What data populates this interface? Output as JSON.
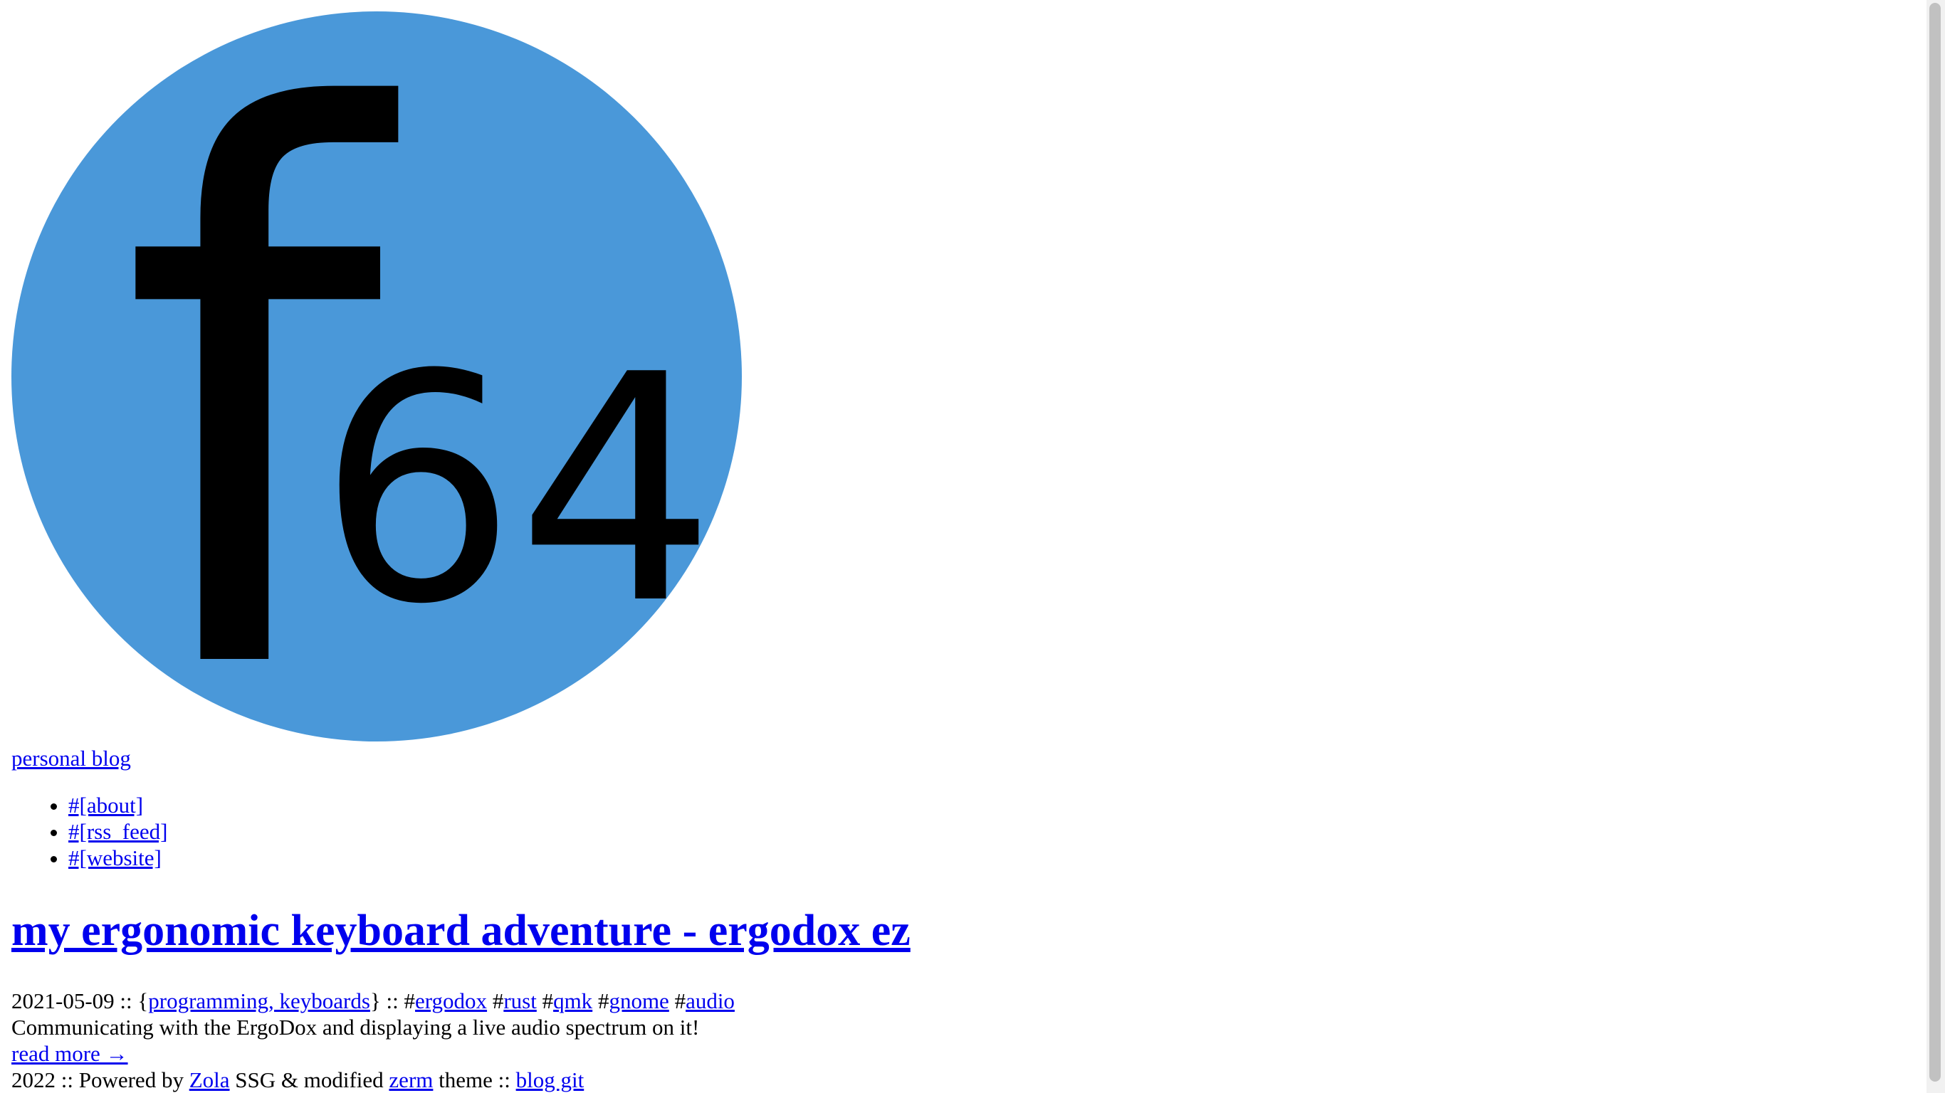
{
  "logo": {
    "name": "f64-logo",
    "letter": "f",
    "number": "64",
    "circle_color": "#4a98d9",
    "glyph_color": "#000000"
  },
  "header": {
    "blog_name": "personal blog"
  },
  "nav": {
    "items": [
      {
        "label": "#[about]"
      },
      {
        "label": "#[rss_feed]"
      },
      {
        "label": "#[website]"
      }
    ]
  },
  "post": {
    "title": "my ergonomic keyboard adventure - ergodox ez",
    "date": "2021-05-09",
    "sep1": " :: {",
    "categories": [
      "programming",
      "keyboards"
    ],
    "cat_sep": ", ",
    "sep2": "} :: ",
    "tags": [
      "ergodox",
      "rust",
      "qmk",
      "gnome",
      "audio"
    ],
    "tag_prefix": "#",
    "summary": "Communicating with the ErgoDox and displaying a live audio spectrum on it!",
    "read_more": "read more →"
  },
  "footer": {
    "year": "2022",
    "t1": " :: Powered by ",
    "zola": "Zola",
    "t2": " SSG & modified ",
    "zerm": "zerm",
    "t3": " theme :: ",
    "blog_git": "blog git"
  },
  "colors": {
    "link": "#0000ee",
    "text": "#000000",
    "background": "#ffffff",
    "scrollbar_thumb": "#c1c1c1"
  }
}
